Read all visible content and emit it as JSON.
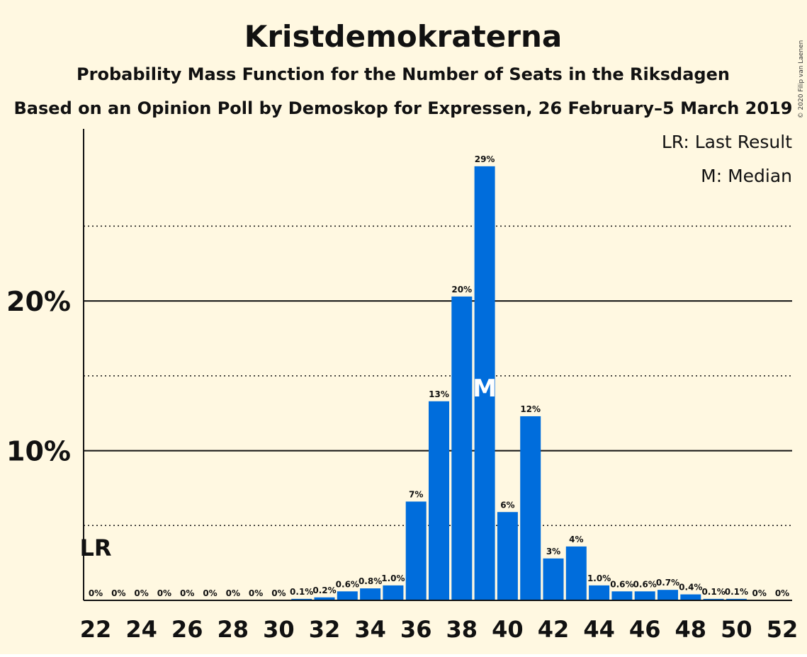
{
  "copyright": "© 2020 Filip van Laenen",
  "chart_data": {
    "type": "bar",
    "title": "Kristdemokraterna",
    "subtitle": "Probability Mass Function for the Number of Seats in the Riksdagen",
    "subtitle2": "Based on an Opinion Poll by Demoskop for Expressen, 26 February–5 March 2019",
    "legend": [
      "LR: Last Result",
      "M: Median"
    ],
    "legend_position": "top-right",
    "x": [
      22,
      23,
      24,
      25,
      26,
      27,
      28,
      29,
      30,
      31,
      32,
      33,
      34,
      35,
      36,
      37,
      38,
      39,
      40,
      41,
      42,
      43,
      44,
      45,
      46,
      47,
      48,
      49,
      50,
      51,
      52
    ],
    "values": [
      0,
      0,
      0,
      0,
      0,
      0,
      0,
      0,
      0,
      0.1,
      0.2,
      0.6,
      0.8,
      1.0,
      6.6,
      13.3,
      20.3,
      29.0,
      5.9,
      12.3,
      2.8,
      3.6,
      1.0,
      0.6,
      0.6,
      0.7,
      0.4,
      0.1,
      0.1,
      0,
      0
    ],
    "labels": [
      "0%",
      "0%",
      "0%",
      "0%",
      "0%",
      "0%",
      "0%",
      "0%",
      "0%",
      "0.1%",
      "0.2%",
      "0.6%",
      "0.8%",
      "1.0%",
      "7%",
      "13%",
      "20%",
      "29%",
      "6%",
      "12%",
      "3%",
      "4%",
      "1.0%",
      "0.6%",
      "0.6%",
      "0.7%",
      "0.4%",
      "0.1%",
      "0.1%",
      "0%",
      "0%"
    ],
    "x_ticks": [
      22,
      24,
      26,
      28,
      30,
      32,
      34,
      36,
      38,
      40,
      42,
      44,
      46,
      48,
      50,
      52
    ],
    "x_tick_labels": [
      "22",
      "24",
      "26",
      "28",
      "30",
      "32",
      "34",
      "36",
      "38",
      "40",
      "42",
      "44",
      "46",
      "48",
      "50",
      "52"
    ],
    "y_ticks": [
      10,
      20
    ],
    "y_tick_labels": [
      "10%",
      "20%"
    ],
    "ylim": [
      0,
      31.5
    ],
    "last_result": {
      "seat": 22,
      "label": "LR"
    },
    "median": {
      "seat": 39,
      "label": "M"
    },
    "bar_color": "#006ddc",
    "background": "#fff8e1"
  }
}
